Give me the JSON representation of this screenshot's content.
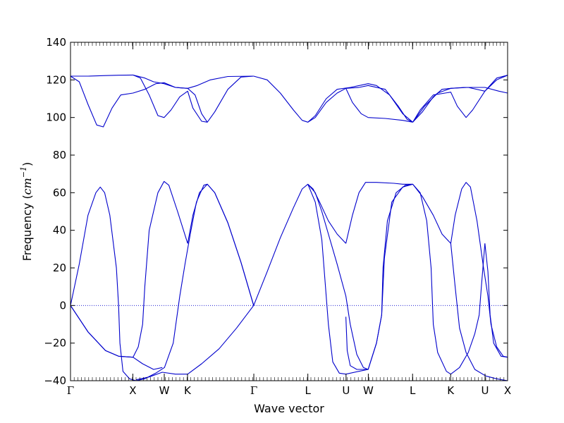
{
  "chart_data": {
    "type": "line",
    "title": "",
    "xlabel": "Wave vector",
    "ylabel": {
      "prefix": "Frequency (",
      "unit": "cm",
      "exponent": "−1",
      "suffix": ")"
    },
    "ylim": [
      -40,
      140
    ],
    "yticks": [
      -40,
      -20,
      0,
      20,
      40,
      60,
      80,
      100,
      120,
      140
    ],
    "xlim": [
      0,
      1
    ],
    "high_symmetry_points": [
      {
        "label": "Γ",
        "x": 0.0
      },
      {
        "label": "X",
        "x": 0.1426
      },
      {
        "label": "W",
        "x": 0.2145
      },
      {
        "label": "K",
        "x": 0.2677
      },
      {
        "label": "Γ",
        "x": 0.4194
      },
      {
        "label": "L",
        "x": 0.543
      },
      {
        "label": "U",
        "x": 0.6304
      },
      {
        "label": "W",
        "x": 0.6813
      },
      {
        "label": "L",
        "x": 0.7826
      },
      {
        "label": "K",
        "x": 0.8697
      },
      {
        "label": "U",
        "x": 0.9484
      },
      {
        "label": "X",
        "x": 1.0
      }
    ],
    "zero_line": true,
    "series_color": "#0000cc",
    "series": [
      {
        "values": [
          [
            0,
            0
          ],
          [
            0.02,
            22
          ],
          [
            0.04,
            48
          ],
          [
            0.058,
            60
          ],
          [
            0.068,
            63
          ],
          [
            0.078,
            60
          ],
          [
            0.09,
            48
          ],
          [
            0.105,
            20
          ],
          [
            0.11,
            0
          ],
          [
            0.113,
            -20
          ],
          [
            0.12,
            -35
          ],
          [
            0.135,
            -39
          ],
          [
            0.15,
            -40
          ],
          [
            0.17,
            -39
          ],
          [
            0.195,
            -36
          ],
          [
            0.215,
            -33
          ],
          [
            0.235,
            -20
          ],
          [
            0.25,
            5
          ],
          [
            0.262,
            22
          ],
          [
            0.274,
            38
          ],
          [
            0.288,
            55
          ],
          [
            0.305,
            64
          ],
          [
            0.313,
            64.5
          ],
          [
            0.33,
            60
          ],
          [
            0.36,
            44
          ],
          [
            0.39,
            23
          ],
          [
            0.419,
            0
          ]
        ]
      },
      {
        "values": [
          [
            0,
            0
          ],
          [
            0.04,
            -14
          ],
          [
            0.08,
            -24
          ],
          [
            0.11,
            -27
          ],
          [
            0.143,
            -27.5
          ],
          [
            0.165,
            -31
          ],
          [
            0.19,
            -34
          ],
          [
            0.21,
            -33
          ]
        ]
      },
      {
        "values": [
          [
            0,
            0
          ],
          [
            0.04,
            -14
          ],
          [
            0.08,
            -24
          ],
          [
            0.11,
            -27
          ],
          [
            0.143,
            -27.5
          ],
          [
            0.155,
            -22
          ],
          [
            0.165,
            -10
          ],
          [
            0.17,
            10
          ],
          [
            0.18,
            40
          ],
          [
            0.2,
            60
          ],
          [
            0.214,
            66
          ],
          [
            0.225,
            64
          ],
          [
            0.245,
            50
          ],
          [
            0.268,
            33
          ]
        ]
      },
      {
        "values": [
          [
            0.15,
            -39.5
          ],
          [
            0.18,
            -38
          ],
          [
            0.21,
            -35.5
          ],
          [
            0.24,
            -36.5
          ],
          [
            0.268,
            -36.5
          ],
          [
            0.3,
            -31
          ],
          [
            0.34,
            -23
          ],
          [
            0.38,
            -12
          ],
          [
            0.419,
            0
          ]
        ]
      },
      {
        "values": [
          [
            0.268,
            33
          ],
          [
            0.28,
            48
          ],
          [
            0.295,
            60
          ],
          [
            0.313,
            64.5
          ],
          [
            0.33,
            60
          ],
          [
            0.36,
            44
          ],
          [
            0.39,
            23
          ],
          [
            0.419,
            0
          ]
        ]
      },
      {
        "values": [
          [
            0.419,
            0
          ],
          [
            0.45,
            18
          ],
          [
            0.48,
            36
          ],
          [
            0.51,
            52
          ],
          [
            0.53,
            62
          ],
          [
            0.543,
            64.5
          ],
          [
            0.555,
            62
          ],
          [
            0.57,
            55
          ],
          [
            0.59,
            45
          ],
          [
            0.61,
            38
          ],
          [
            0.63,
            33
          ]
        ]
      },
      {
        "values": [
          [
            0.543,
            64.5
          ],
          [
            0.56,
            55
          ],
          [
            0.575,
            35
          ],
          [
            0.59,
            -10
          ],
          [
            0.6,
            -30
          ],
          [
            0.615,
            -36
          ],
          [
            0.63,
            -36.5
          ],
          [
            0.66,
            -35
          ],
          [
            0.681,
            -34
          ],
          [
            0.7,
            -20
          ],
          [
            0.712,
            -5
          ],
          [
            0.715,
            20
          ],
          [
            0.725,
            45
          ],
          [
            0.745,
            60
          ],
          [
            0.766,
            64
          ],
          [
            0.783,
            64.5
          ]
        ]
      },
      {
        "values": [
          [
            0.543,
            64.5
          ],
          [
            0.56,
            60
          ],
          [
            0.575,
            50
          ],
          [
            0.59,
            38
          ],
          [
            0.61,
            22
          ],
          [
            0.63,
            5
          ],
          [
            0.64,
            -10
          ],
          [
            0.655,
            -26
          ],
          [
            0.67,
            -33
          ],
          [
            0.681,
            -34
          ],
          [
            0.7,
            -20
          ],
          [
            0.712,
            -5
          ],
          [
            0.718,
            25
          ],
          [
            0.735,
            55
          ],
          [
            0.76,
            63
          ],
          [
            0.783,
            64.5
          ]
        ]
      },
      {
        "values": [
          [
            0.63,
            33
          ],
          [
            0.645,
            48
          ],
          [
            0.66,
            60
          ],
          [
            0.675,
            65.5
          ],
          [
            0.7,
            65.5
          ],
          [
            0.74,
            65
          ],
          [
            0.76,
            64.5
          ],
          [
            0.783,
            64.5
          ]
        ]
      },
      {
        "values": [
          [
            0.63,
            -6
          ],
          [
            0.633,
            -24
          ],
          [
            0.64,
            -32
          ],
          [
            0.655,
            -34
          ],
          [
            0.681,
            -34
          ]
        ]
      },
      {
        "values": [
          [
            0.783,
            64.5
          ],
          [
            0.8,
            60
          ],
          [
            0.815,
            45
          ],
          [
            0.825,
            20
          ],
          [
            0.83,
            -10
          ],
          [
            0.84,
            -25
          ],
          [
            0.86,
            -35
          ],
          [
            0.87,
            -36.5
          ],
          [
            0.89,
            -33
          ],
          [
            0.91,
            -25
          ],
          [
            0.925,
            -15
          ],
          [
            0.935,
            -5
          ],
          [
            0.94,
            10
          ],
          [
            0.948,
            33
          ]
        ]
      },
      {
        "values": [
          [
            0.783,
            64.5
          ],
          [
            0.805,
            58
          ],
          [
            0.83,
            48
          ],
          [
            0.85,
            38
          ],
          [
            0.87,
            33
          ],
          [
            0.88,
            48
          ],
          [
            0.895,
            62
          ],
          [
            0.905,
            65.5
          ],
          [
            0.915,
            63
          ],
          [
            0.93,
            45
          ],
          [
            0.945,
            20
          ],
          [
            0.955,
            5
          ],
          [
            0.962,
            -10
          ],
          [
            0.975,
            -22
          ],
          [
            0.99,
            -27
          ],
          [
            1.0,
            -27.5
          ]
        ]
      },
      {
        "values": [
          [
            0.87,
            33
          ],
          [
            0.88,
            10
          ],
          [
            0.89,
            -12
          ],
          [
            0.905,
            -25
          ],
          [
            0.925,
            -34
          ],
          [
            0.95,
            -37.5
          ],
          [
            0.975,
            -39
          ],
          [
            1.0,
            -40
          ]
        ]
      },
      {
        "values": [
          [
            0.948,
            33
          ],
          [
            0.955,
            18
          ],
          [
            0.96,
            -5
          ],
          [
            0.968,
            -20
          ],
          [
            0.985,
            -27
          ],
          [
            1.0,
            -27.5
          ]
        ]
      },
      {
        "values": [
          [
            0,
            122
          ],
          [
            0.04,
            122
          ],
          [
            0.08,
            122.3
          ],
          [
            0.11,
            122.5
          ],
          [
            0.143,
            122.6
          ],
          [
            0.17,
            121
          ],
          [
            0.19,
            119
          ],
          [
            0.214,
            118
          ],
          [
            0.24,
            116
          ],
          [
            0.268,
            115.5
          ],
          [
            0.29,
            117
          ],
          [
            0.32,
            120
          ],
          [
            0.36,
            121.8
          ],
          [
            0.419,
            122
          ]
        ]
      },
      {
        "values": [
          [
            0,
            122
          ],
          [
            0.02,
            119
          ],
          [
            0.04,
            107
          ],
          [
            0.06,
            96
          ],
          [
            0.075,
            95
          ],
          [
            0.095,
            105
          ],
          [
            0.115,
            112
          ],
          [
            0.143,
            113
          ],
          [
            0.17,
            115
          ],
          [
            0.195,
            118
          ],
          [
            0.214,
            118.5
          ],
          [
            0.24,
            116
          ],
          [
            0.268,
            115.5
          ]
        ]
      },
      {
        "values": [
          [
            0.143,
            122.6
          ],
          [
            0.16,
            121
          ],
          [
            0.18,
            112
          ],
          [
            0.2,
            101
          ],
          [
            0.214,
            100
          ],
          [
            0.23,
            104
          ],
          [
            0.25,
            111
          ],
          [
            0.268,
            114
          ],
          [
            0.28,
            105
          ],
          [
            0.3,
            98
          ],
          [
            0.313,
            97.5
          ],
          [
            0.33,
            103
          ],
          [
            0.36,
            115
          ],
          [
            0.39,
            121.5
          ],
          [
            0.419,
            122
          ]
        ]
      },
      {
        "values": [
          [
            0.268,
            115.5
          ],
          [
            0.285,
            112
          ],
          [
            0.3,
            102
          ],
          [
            0.313,
            97.5
          ]
        ]
      },
      {
        "values": [
          [
            0.419,
            122
          ],
          [
            0.45,
            120
          ],
          [
            0.48,
            113
          ],
          [
            0.51,
            104
          ],
          [
            0.53,
            98.5
          ],
          [
            0.543,
            97.5
          ],
          [
            0.56,
            100
          ],
          [
            0.585,
            108
          ],
          [
            0.61,
            113
          ],
          [
            0.63,
            115.5
          ],
          [
            0.66,
            116
          ],
          [
            0.681,
            117
          ],
          [
            0.72,
            115
          ],
          [
            0.75,
            106
          ],
          [
            0.77,
            99
          ],
          [
            0.783,
            97.5
          ]
        ]
      },
      {
        "values": [
          [
            0.543,
            97.5
          ],
          [
            0.56,
            101
          ],
          [
            0.585,
            110
          ],
          [
            0.61,
            115
          ],
          [
            0.64,
            116
          ],
          [
            0.681,
            118
          ],
          [
            0.7,
            117
          ],
          [
            0.73,
            112
          ],
          [
            0.76,
            102
          ],
          [
            0.783,
            97.5
          ]
        ]
      },
      {
        "values": [
          [
            0.63,
            115.5
          ],
          [
            0.645,
            108
          ],
          [
            0.665,
            102
          ],
          [
            0.681,
            100
          ],
          [
            0.72,
            99.5
          ],
          [
            0.76,
            98.5
          ],
          [
            0.783,
            97.5
          ]
        ]
      },
      {
        "values": [
          [
            0.783,
            97.5
          ],
          [
            0.805,
            103
          ],
          [
            0.83,
            111
          ],
          [
            0.85,
            115
          ],
          [
            0.87,
            115.5
          ],
          [
            0.9,
            116
          ],
          [
            0.948,
            116
          ],
          [
            0.98,
            114
          ],
          [
            1.0,
            113
          ]
        ]
      },
      {
        "values": [
          [
            0.783,
            97.5
          ],
          [
            0.8,
            104
          ],
          [
            0.83,
            112
          ],
          [
            0.87,
            113.5
          ],
          [
            0.885,
            106
          ],
          [
            0.905,
            100
          ],
          [
            0.92,
            104
          ],
          [
            0.948,
            114
          ],
          [
            0.975,
            121
          ],
          [
            1.0,
            122.5
          ]
        ]
      },
      {
        "values": [
          [
            0.783,
            97.5
          ],
          [
            0.81,
            106
          ],
          [
            0.84,
            113
          ],
          [
            0.87,
            115.5
          ],
          [
            0.91,
            116
          ],
          [
            0.948,
            114
          ],
          [
            0.975,
            120
          ],
          [
            1.0,
            122.5
          ]
        ]
      }
    ]
  }
}
